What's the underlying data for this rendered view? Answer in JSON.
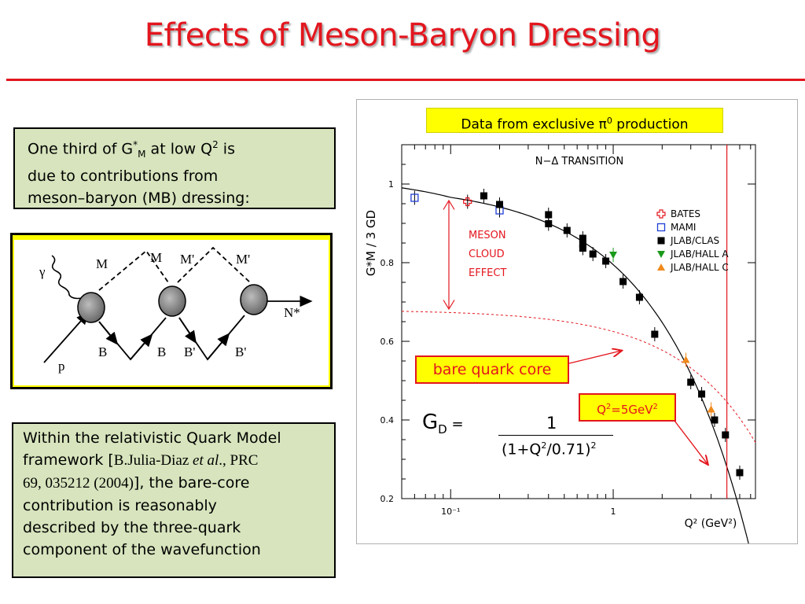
{
  "slide": {
    "title": "Effects of Meson-Baryon Dressing"
  },
  "box_top": {
    "line1_pre": "One third of G",
    "line1_sup": "*",
    "line1_sub": "M",
    "line1_mid": " at low Q",
    "line1_sup2": "2",
    "line1_post": " is",
    "line2": "due  to contributions from",
    "line3": "meson–baryon (MB) dressing:"
  },
  "box_bottom": {
    "line1": "Within the relativistic Quark Model",
    "line2_pre": "framework [",
    "line2_ref1": "B.Julia-Diaz ",
    "line2_ref_italic": "et al",
    "line2_ref2": "., PRC",
    "line3_ref": "69, 035212 (2004)",
    "line3_post": "], the bare-core",
    "line4": "contribution is reasonably",
    "line5": "described by the three-quark",
    "line6": "component of the wavefunction"
  },
  "diagram": {
    "gamma": "γ",
    "p": "p",
    "labels": [
      "M",
      "M",
      "M'",
      "M'",
      "B",
      "B",
      "B'",
      "B'"
    ],
    "nstar": "N*"
  },
  "callouts": {
    "banner_pre": "Data from exclusive π",
    "banner_sup": "0",
    "banner_post": " production",
    "bare_core": "bare quark core",
    "q2_pre": "Q",
    "q2_sup1": "2",
    "q2_mid": "=5GeV",
    "q2_sup2": "2",
    "gd_label": "G",
    "gd_sub": "D",
    "gd_eq": " =",
    "gd_num": "1",
    "gd_den_pre": "(1+Q",
    "gd_den_sup1": "2",
    "gd_den_mid": "/0.71)",
    "gd_den_sup2": "2"
  },
  "colors": {
    "accent": "#e3161e",
    "panel_green": "#d7e4bd",
    "highlight_yellow": "#ffff00",
    "bates": "#e3161e",
    "mami": "#1f3fd6",
    "clas": "#000000",
    "hall_a": "#1a9a1a",
    "hall_c": "#f08a1c"
  },
  "chart_data": {
    "type": "scatter",
    "title": "N−Δ TRANSITION",
    "ylabel": "G*M / 3 GD",
    "xlabel": "Q² (GeV²)",
    "x_scale": "log",
    "xlim": [
      0.05,
      7.5
    ],
    "ylim": [
      0.2,
      1.1
    ],
    "x_ticks": [
      "10⁻¹",
      "1"
    ],
    "y_ticks": [
      "0.2",
      "0.4",
      "0.6",
      "0.8",
      "1"
    ],
    "annotation": "MESON CLOUD EFFECT",
    "vertical_line_x": 5.0,
    "legend_position": "right",
    "series": [
      {
        "name": "BATES",
        "marker": "cross-open",
        "points": [
          [
            0.127,
            0.955
          ]
        ]
      },
      {
        "name": "MAMI",
        "marker": "square-open",
        "points": [
          [
            0.06,
            0.965
          ],
          [
            0.2,
            0.933
          ]
        ]
      },
      {
        "name": "JLAB/CLAS",
        "marker": "square-filled",
        "points": [
          [
            0.16,
            0.97
          ],
          [
            0.2,
            0.948
          ],
          [
            0.4,
            0.922
          ],
          [
            0.4,
            0.899
          ],
          [
            0.52,
            0.882
          ],
          [
            0.65,
            0.862
          ],
          [
            0.65,
            0.847
          ],
          [
            0.65,
            0.837
          ],
          [
            0.75,
            0.822
          ],
          [
            0.9,
            0.804
          ],
          [
            1.15,
            0.752
          ],
          [
            1.45,
            0.712
          ],
          [
            1.8,
            0.618
          ],
          [
            3.0,
            0.496
          ],
          [
            3.5,
            0.466
          ],
          [
            4.2,
            0.4
          ],
          [
            4.9,
            0.362
          ],
          [
            6.0,
            0.266
          ]
        ]
      },
      {
        "name": "JLAB/HALL A",
        "marker": "triangle-down",
        "points": [
          [
            1.0,
            0.82
          ]
        ]
      },
      {
        "name": "JLAB/HALL C",
        "marker": "triangle-up",
        "points": [
          [
            2.8,
            0.553
          ],
          [
            4.0,
            0.427
          ]
        ]
      }
    ]
  }
}
